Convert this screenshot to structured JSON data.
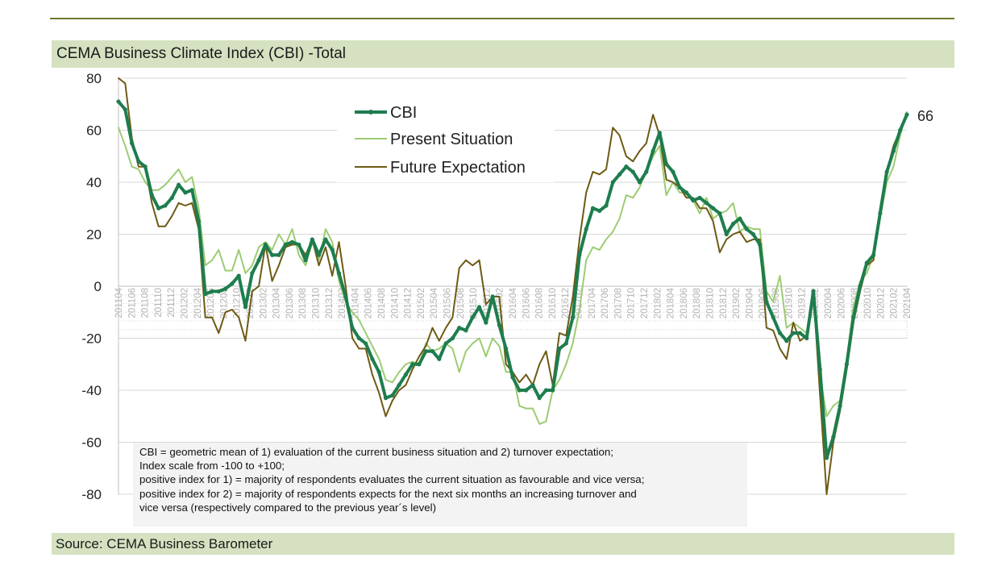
{
  "header": {
    "title": "CEMA Business Climate Index (CBI) -Total"
  },
  "footer": {
    "source": "Source: CEMA Business Barometer"
  },
  "note": {
    "lines": [
      "CBI = geometric mean of 1) evaluation of the current business situation and 2) turnover expectation;",
      "Index scale from -100 to +100;",
      "positive index for 1) = majority of respondents evaluates the current situation as favourable and vice versa;",
      "positive index for 2) = majority of respondents expects for the next six months an increasing turnover and",
      "vice versa (respectively compared to the previous year´s level)"
    ]
  },
  "colors": {
    "cbi": "#1e7d4e",
    "present": "#9ccc72",
    "future": "#6e5a14",
    "band": "#d5e1c0",
    "rule": "#6d7a2c"
  },
  "chart_data": {
    "type": "line",
    "title": "CEMA Business Climate Index (CBI) -Total",
    "ylim": [
      -80,
      80
    ],
    "yticks": [
      80,
      60,
      40,
      20,
      0,
      -20,
      -40,
      -60,
      -80
    ],
    "grid": true,
    "legend_position": "top-center",
    "x_tick_labels": [
      "201104",
      "201106",
      "201108",
      "201110",
      "201112",
      "201202",
      "201204",
      "201206",
      "201208",
      "201210",
      "201212",
      "201302",
      "201304",
      "201306",
      "201308",
      "201310",
      "201312",
      "201402",
      "201404",
      "201406",
      "201408",
      "201410",
      "201412",
      "201502",
      "201504",
      "201506",
      "201508",
      "201510",
      "201512",
      "201602",
      "201604",
      "201606",
      "201608",
      "201610",
      "201612",
      "201702",
      "201704",
      "201706",
      "201708",
      "201710",
      "201712",
      "201802",
      "201804",
      "201806",
      "201808",
      "201810",
      "201812",
      "201902",
      "201904",
      "201906",
      "201908",
      "201910",
      "201912",
      "202002",
      "202004",
      "202006",
      "202008",
      "202010",
      "202012",
      "202102",
      "202104"
    ],
    "end_label": "66",
    "series": [
      {
        "name": "CBI",
        "values": [
          71,
          68,
          55,
          48,
          46,
          35,
          30,
          31,
          34,
          39,
          36,
          37,
          25,
          -3,
          -2,
          -2,
          -1,
          1,
          4,
          -8,
          5,
          10,
          16,
          12,
          12,
          16,
          17,
          16,
          10,
          18,
          12,
          18,
          14,
          5,
          -4,
          -16,
          -20,
          -22,
          -28,
          -33,
          -43,
          -42,
          -38,
          -34,
          -30,
          -30,
          -25,
          -25,
          -28,
          -22,
          -20,
          -16,
          -17,
          -12,
          -8,
          -14,
          -4,
          -15,
          -24,
          -35,
          -40,
          -40,
          -38,
          -43,
          -40,
          -40,
          -24,
          -22,
          -12,
          12,
          22,
          30,
          29,
          31,
          40,
          43,
          46,
          44,
          40,
          44,
          52,
          59,
          47,
          44,
          38,
          36,
          33,
          34,
          32,
          30,
          28,
          20,
          24,
          26,
          22,
          20,
          16,
          -6,
          -12,
          -18,
          -21,
          -18,
          -18,
          -20,
          -2,
          -32,
          -66,
          -58,
          -46,
          -30,
          -12,
          0,
          9,
          12,
          28,
          44,
          52,
          60,
          66
        ]
      },
      {
        "name": "Present Situation",
        "values": [
          61,
          54,
          46,
          45,
          40,
          37,
          37,
          39,
          42,
          45,
          40,
          42,
          30,
          8,
          10,
          14,
          6,
          6,
          14,
          5,
          8,
          15,
          17,
          14,
          20,
          16,
          22,
          12,
          8,
          17,
          10,
          22,
          17,
          2,
          -6,
          -10,
          -13,
          -18,
          -23,
          -28,
          -36,
          -37,
          -33,
          -30,
          -29,
          -30,
          -22,
          -25,
          -24,
          -22,
          -24,
          -33,
          -25,
          -22,
          -20,
          -27,
          -20,
          -23,
          -33,
          -33,
          -46,
          -47,
          -47,
          -53,
          -52,
          -40,
          -36,
          -30,
          -22,
          -9,
          10,
          15,
          14,
          18,
          21,
          26,
          35,
          34,
          38,
          44,
          50,
          54,
          35,
          40,
          36,
          36,
          33,
          28,
          34,
          26,
          28,
          29,
          32,
          21,
          23,
          22,
          22,
          -2,
          -6,
          4,
          -16,
          -14,
          -16,
          -18,
          -5,
          -34,
          -50,
          -46,
          -44,
          -28,
          -8,
          2,
          5,
          12,
          26,
          40,
          46,
          58,
          67
        ]
      },
      {
        "name": "Future Expectation",
        "values": [
          80,
          78,
          57,
          46,
          46,
          32,
          23,
          23,
          27,
          32,
          31,
          32,
          22,
          -12,
          -12,
          -18,
          -10,
          -9,
          -12,
          -21,
          -2,
          0,
          16,
          2,
          8,
          15,
          16,
          16,
          12,
          18,
          8,
          15,
          4,
          17,
          0,
          -20,
          -24,
          -24,
          -34,
          -41,
          -50,
          -44,
          -40,
          -38,
          -32,
          -27,
          -23,
          -16,
          -21,
          -16,
          -12,
          7,
          10,
          8,
          10,
          -7,
          -4,
          -4,
          -30,
          -33,
          -37,
          -34,
          -38,
          -30,
          -25,
          -38,
          -18,
          -19,
          -4,
          18,
          36,
          44,
          43,
          45,
          61,
          58,
          50,
          48,
          52,
          55,
          66,
          58,
          41,
          40,
          38,
          34,
          34,
          30,
          30,
          25,
          13,
          18,
          20,
          21,
          17,
          18,
          18,
          -16,
          -17,
          -24,
          -28,
          -14,
          -21,
          -19,
          -2,
          -42,
          -80,
          -60,
          -48,
          -32,
          -14,
          -2,
          8,
          10,
          30,
          44,
          54,
          60,
          66
        ]
      }
    ]
  }
}
